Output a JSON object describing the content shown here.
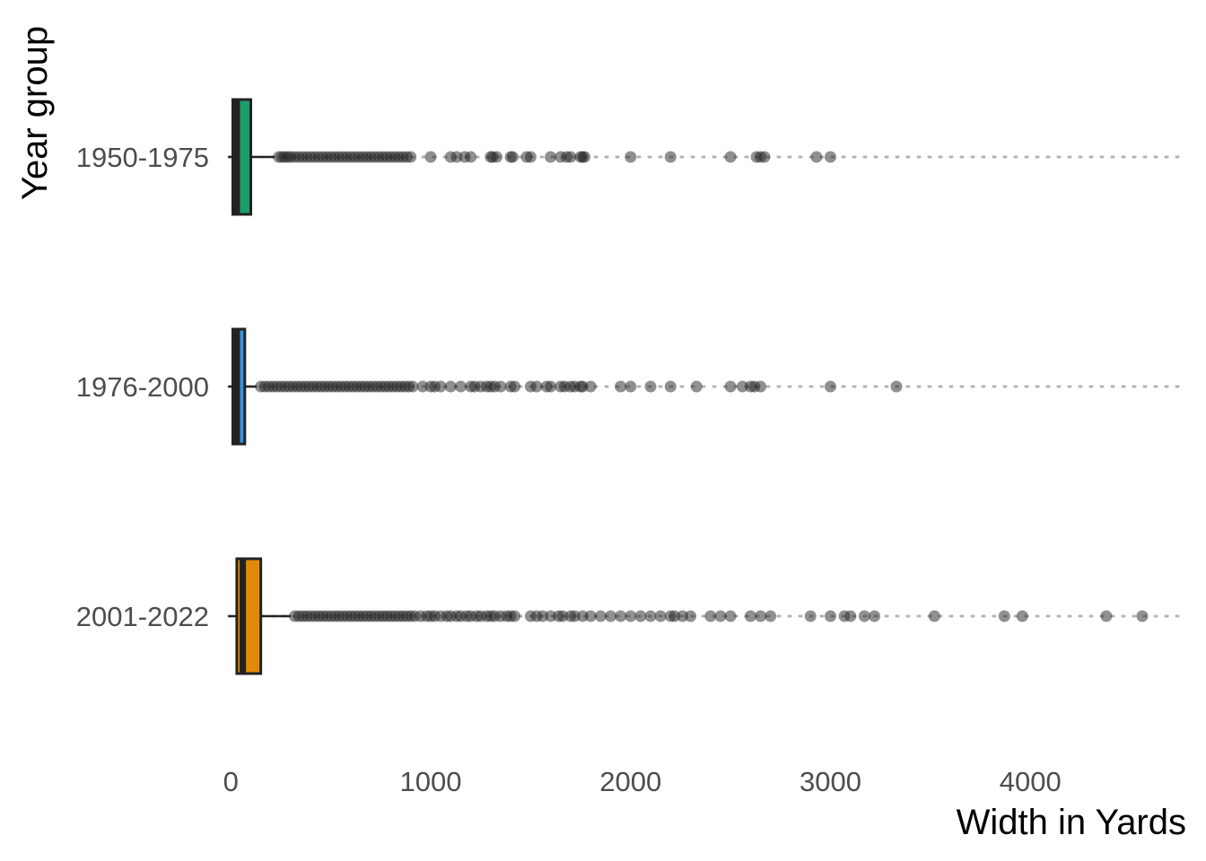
{
  "chart_data": {
    "type": "boxplot",
    "orientation": "horizontal",
    "title": "",
    "xlabel": "Width in Yards",
    "ylabel": "Year group",
    "xlim": [
      -10,
      4780
    ],
    "x_ticks": [
      0,
      1000,
      2000,
      3000,
      4000
    ],
    "x_tick_labels": [
      "0",
      "1000",
      "2000",
      "3000",
      "4000"
    ],
    "grid": "dotted horizontal lines at each category",
    "legend": "none",
    "categories": [
      "1950-1975",
      "1976-2000",
      "2001-2022"
    ],
    "series": [
      {
        "category": "1950-1975",
        "color": "#1b9e6b",
        "min": 0,
        "q1": 10,
        "median": 30,
        "q3": 100,
        "whisker_high": 220,
        "outliers": [
          240,
          255,
          270,
          285,
          300,
          320,
          340,
          360,
          380,
          400,
          420,
          440,
          460,
          480,
          500,
          520,
          540,
          560,
          580,
          600,
          620,
          640,
          660,
          680,
          700,
          720,
          740,
          760,
          780,
          800,
          820,
          840,
          860,
          880,
          900,
          1000,
          1100,
          1130,
          1170,
          1200,
          1300,
          1310,
          1330,
          1400,
          1410,
          1480,
          1500,
          1600,
          1650,
          1680,
          1700,
          1750,
          1760,
          1770,
          2000,
          2200,
          2500,
          2630,
          2650,
          2670,
          2930,
          3000
        ]
      },
      {
        "category": "1976-2000",
        "color": "#3a8fd9",
        "min": 0,
        "q1": 10,
        "median": 30,
        "q3": 70,
        "whisker_high": 130,
        "outliers": [
          150,
          170,
          190,
          210,
          230,
          250,
          270,
          290,
          310,
          330,
          350,
          370,
          390,
          410,
          430,
          450,
          470,
          490,
          510,
          530,
          550,
          570,
          590,
          610,
          630,
          650,
          670,
          690,
          710,
          730,
          750,
          770,
          790,
          810,
          830,
          850,
          870,
          890,
          910,
          960,
          1000,
          1020,
          1050,
          1100,
          1150,
          1200,
          1220,
          1250,
          1280,
          1300,
          1320,
          1350,
          1400,
          1420,
          1500,
          1530,
          1580,
          1600,
          1650,
          1670,
          1700,
          1720,
          1750,
          1760,
          1800,
          1950,
          2000,
          2100,
          2200,
          2330,
          2500,
          2560,
          2600,
          2620,
          2650,
          3000,
          3330
        ]
      },
      {
        "category": "2001-2022",
        "color": "#e08a0b",
        "min": 0,
        "q1": 30,
        "median": 60,
        "q3": 150,
        "whisker_high": 300,
        "outliers": [
          320,
          340,
          360,
          380,
          400,
          420,
          440,
          460,
          480,
          500,
          520,
          540,
          560,
          580,
          600,
          620,
          640,
          660,
          680,
          700,
          720,
          740,
          760,
          780,
          800,
          820,
          840,
          860,
          880,
          900,
          920,
          950,
          980,
          1000,
          1020,
          1050,
          1080,
          1100,
          1130,
          1150,
          1180,
          1200,
          1230,
          1250,
          1280,
          1300,
          1320,
          1350,
          1380,
          1400,
          1420,
          1500,
          1530,
          1560,
          1600,
          1640,
          1660,
          1700,
          1720,
          1760,
          1800,
          1850,
          1900,
          1950,
          2000,
          2050,
          2100,
          2150,
          2200,
          2220,
          2260,
          2300,
          2400,
          2450,
          2500,
          2600,
          2650,
          2700,
          2900,
          3000,
          3070,
          3100,
          3170,
          3220,
          3520,
          3870,
          3960,
          4380,
          4560
        ]
      }
    ]
  }
}
